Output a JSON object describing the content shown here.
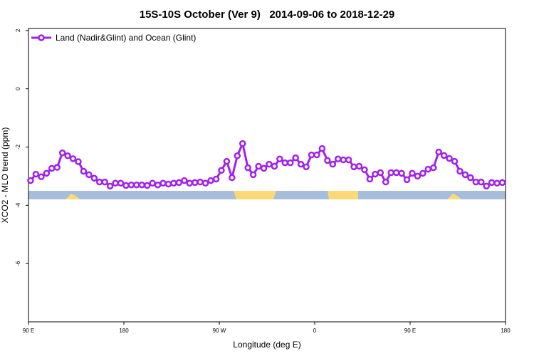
{
  "chart_data": {
    "type": "line",
    "title": "15S-10S October (Ver 9)   2014-09-06 to 2018-12-29",
    "x_label": "Longitude (deg E)",
    "y_label": "XCO2 - MLO trend (ppm)",
    "xlim": [
      90,
      540
    ],
    "xticks": [
      {
        "value": 90,
        "label": "90 E"
      },
      {
        "value": 180,
        "label": "180"
      },
      {
        "value": 270,
        "label": "90 W"
      },
      {
        "value": 360,
        "label": "0"
      },
      {
        "value": 450,
        "label": "90 E"
      },
      {
        "value": 540,
        "label": "180"
      }
    ],
    "ylim": [
      -8.0,
      2.07
    ],
    "yticks": [
      2,
      0,
      -2,
      -4,
      -6
    ],
    "legend": "top-left",
    "x": [
      92,
      97,
      102,
      107,
      112,
      117,
      122,
      127,
      132,
      137,
      142,
      147,
      152,
      157,
      162,
      167,
      172,
      177,
      182,
      187,
      192,
      197,
      202,
      207,
      212,
      217,
      222,
      227,
      232,
      237,
      242,
      247,
      252,
      257,
      262,
      267,
      272,
      277,
      282,
      287,
      292,
      297,
      302,
      307,
      312,
      317,
      322,
      327,
      332,
      337,
      342,
      347,
      352,
      357,
      362,
      367,
      372,
      377,
      382,
      387,
      392,
      397,
      402,
      407,
      412,
      417,
      422,
      427,
      432,
      437,
      442,
      447,
      452,
      457,
      462,
      467,
      472,
      477,
      482,
      487,
      492,
      497,
      502,
      507,
      512,
      517,
      522,
      527,
      532,
      537
    ],
    "series": [
      {
        "name": "Land (Nadir&Glint) and Ocean (Glint)",
        "color": "#a020f0",
        "values": [
          -3.15,
          -2.93,
          -3.02,
          -2.9,
          -2.73,
          -2.7,
          -2.2,
          -2.3,
          -2.4,
          -2.5,
          -2.83,
          -2.95,
          -3.07,
          -3.2,
          -3.2,
          -3.34,
          -3.24,
          -3.24,
          -3.32,
          -3.3,
          -3.3,
          -3.3,
          -3.32,
          -3.24,
          -3.3,
          -3.24,
          -3.27,
          -3.24,
          -3.22,
          -3.15,
          -3.24,
          -3.22,
          -3.2,
          -3.24,
          -3.15,
          -3.1,
          -2.8,
          -2.49,
          -3.05,
          -2.3,
          -1.88,
          -2.71,
          -2.95,
          -2.66,
          -2.73,
          -2.59,
          -2.66,
          -2.41,
          -2.54,
          -2.54,
          -2.37,
          -2.59,
          -2.68,
          -2.27,
          -2.27,
          -2.05,
          -2.46,
          -2.59,
          -2.41,
          -2.44,
          -2.44,
          -2.68,
          -2.66,
          -2.78,
          -3.1,
          -2.93,
          -2.88,
          -3.2,
          -2.88,
          -2.88,
          -2.9,
          -3.12,
          -2.9,
          -3.0,
          -2.9,
          -2.76,
          -2.71,
          -2.17,
          -2.29,
          -2.39,
          -2.49,
          -2.83,
          -2.95,
          -3.05,
          -3.2,
          -3.2,
          -3.34,
          -3.22,
          -3.24,
          -3.22
        ]
      }
    ]
  }
}
